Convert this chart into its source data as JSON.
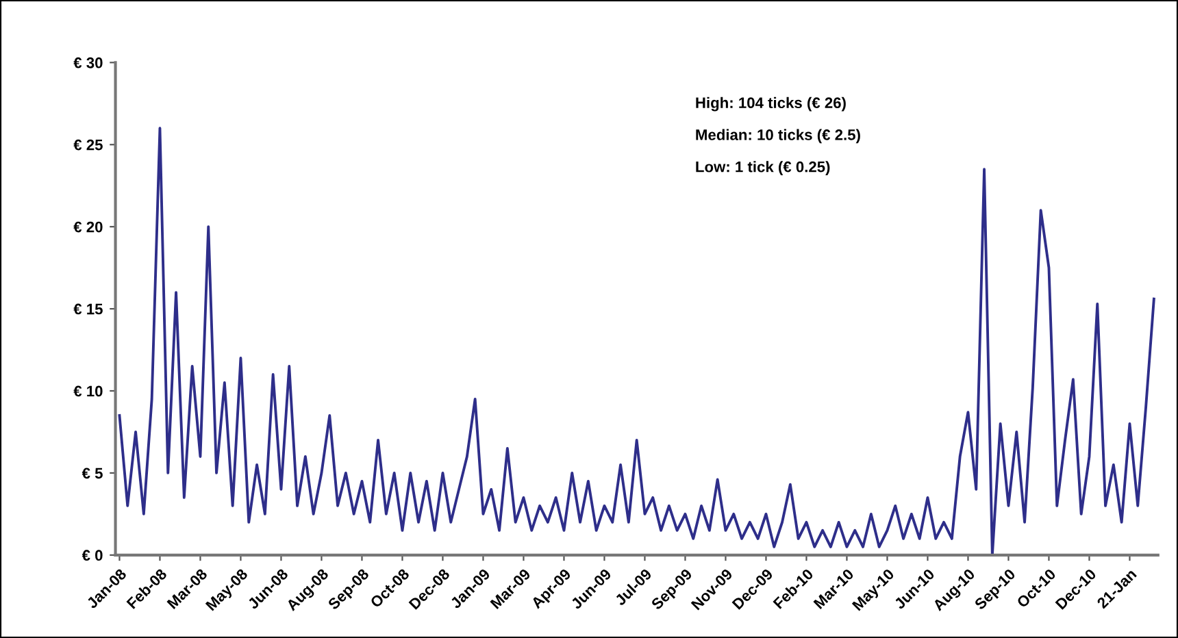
{
  "chart_data": {
    "type": "line",
    "annotations": [
      "High: 104 ticks (€ 26)",
      "Median: 10 ticks (€ 2.5)",
      "Low: 1 tick (€ 0.25)"
    ],
    "categories": [
      "Jan-08",
      null,
      null,
      null,
      null,
      "Feb-08",
      null,
      null,
      null,
      null,
      "Mar-08",
      null,
      null,
      null,
      null,
      "May-08",
      null,
      null,
      null,
      null,
      "Jun-08",
      null,
      null,
      null,
      null,
      "Aug-08",
      null,
      null,
      null,
      null,
      "Sep-08",
      null,
      null,
      null,
      null,
      "Oct-08",
      null,
      null,
      null,
      null,
      "Dec-08",
      null,
      null,
      null,
      null,
      "Jan-09",
      null,
      null,
      null,
      null,
      "Mar-09",
      null,
      null,
      null,
      null,
      "Apr-09",
      null,
      null,
      null,
      null,
      "Jun-09",
      null,
      null,
      null,
      null,
      "Jul-09",
      null,
      null,
      null,
      null,
      "Sep-09",
      null,
      null,
      null,
      null,
      "Nov-09",
      null,
      null,
      null,
      null,
      "Dec-09",
      null,
      null,
      null,
      null,
      "Feb-10",
      null,
      null,
      null,
      null,
      "Mar-10",
      null,
      null,
      null,
      null,
      "May-10",
      null,
      null,
      null,
      null,
      "Jun-10",
      null,
      null,
      null,
      null,
      "Aug-10",
      null,
      null,
      null,
      null,
      "Sep-10",
      null,
      null,
      null,
      null,
      "Oct-10",
      null,
      null,
      null,
      null,
      "Dec-10",
      null,
      null,
      null,
      null,
      "21-Jan",
      null,
      null,
      null
    ],
    "series": [
      {
        "color": "#2e2e8a",
        "values": [
          8.5,
          3,
          7.5,
          2.5,
          9.5,
          26,
          5,
          16,
          3.5,
          11.5,
          6,
          20,
          5,
          10.5,
          3,
          12,
          2,
          5.5,
          2.5,
          11,
          4,
          11.5,
          3,
          6,
          2.5,
          5,
          8.5,
          3,
          5,
          2.5,
          4.5,
          2,
          7,
          2.5,
          5,
          1.5,
          5,
          2,
          4.5,
          1.5,
          5,
          2,
          4,
          6,
          9.5,
          2.5,
          4,
          1.5,
          6.5,
          2,
          3.5,
          1.5,
          3,
          2,
          3.5,
          1.5,
          5,
          2,
          4.5,
          1.5,
          3,
          2,
          5.5,
          2,
          7,
          2.5,
          3.5,
          1.5,
          3,
          1.5,
          2.5,
          1,
          3,
          1.5,
          4.6,
          1.5,
          2.5,
          1,
          2,
          1,
          2.5,
          0.5,
          2,
          4.3,
          1,
          2,
          0.5,
          1.5,
          0.5,
          2,
          0.5,
          1.5,
          0.5,
          2.5,
          0.5,
          1.5,
          3,
          1,
          2.5,
          1,
          3.5,
          1,
          2,
          1,
          6,
          8.7,
          4,
          23.5,
          0,
          8,
          3,
          7.5,
          2,
          10.2,
          21,
          17.5,
          3,
          7,
          10.7,
          2.5,
          6,
          15.3,
          3,
          5.5,
          2,
          8,
          3,
          9,
          15.6
        ]
      }
    ],
    "ylim": [
      0,
      30
    ],
    "yticks": [
      {
        "value": 0,
        "label": "€ 0"
      },
      {
        "value": 5,
        "label": "€ 5"
      },
      {
        "value": 10,
        "label": "€ 10"
      },
      {
        "value": 15,
        "label": "€ 15"
      },
      {
        "value": 20,
        "label": "€ 20"
      },
      {
        "value": 25,
        "label": "€ 25"
      },
      {
        "value": 30,
        "label": "€ 30"
      }
    ],
    "grid": false,
    "marker": "none",
    "line_style": "solid"
  }
}
